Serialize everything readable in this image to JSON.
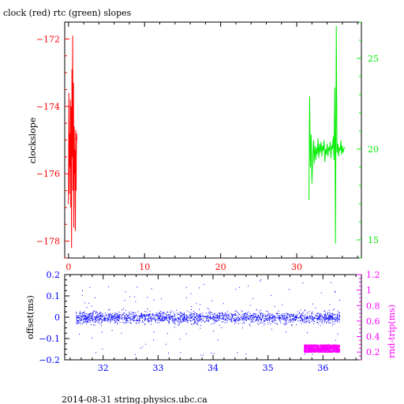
{
  "colors": {
    "red": "#ff0000",
    "green": "#00ee00",
    "blue": "#0000ff",
    "magenta": "#ff00ff",
    "black": "#000000"
  },
  "figure": {
    "title": "clock (red) rtc (green) slopes",
    "footer": "2014-08-31 string.physics.ubc.ca"
  },
  "chart_data": [
    {
      "type": "line",
      "title": "clock (red) rtc (green) slopes",
      "ylabel": "clockslope",
      "xlim": [
        -0.5,
        38.5
      ],
      "ylim": [
        -178.5,
        -171.5
      ],
      "y2lim": [
        14,
        27
      ],
      "x_ticks": [
        0,
        10,
        20,
        30
      ],
      "y_ticks": [
        -172,
        -174,
        -176,
        -178
      ],
      "y2_ticks": [
        25,
        20,
        15
      ],
      "grid": false,
      "series": [
        {
          "axis": "left",
          "color": "#ff0000",
          "x": [
            0.0,
            0.05,
            0.1,
            0.15,
            0.2,
            0.25,
            0.3,
            0.35,
            0.4,
            0.45,
            0.5,
            0.55,
            0.6,
            0.65,
            0.7,
            0.75,
            0.8,
            0.85,
            0.9,
            0.95,
            1.0,
            1.05,
            1.1
          ],
          "y": [
            -176.9,
            -173.6,
            -176.6,
            -174.8,
            -175.8,
            -173.8,
            -177.0,
            -174.0,
            -178.2,
            -172.9,
            -175.5,
            -171.9,
            -176.5,
            -173.3,
            -177.6,
            -174.6,
            -176.0,
            -175.3,
            -177.7,
            -174.7,
            -176.5,
            -174.8,
            -175.0
          ]
        },
        {
          "axis": "right",
          "color": "#00ee00",
          "x": [
            31.6,
            31.7,
            31.8,
            31.9,
            32.0,
            32.1,
            32.2,
            32.3,
            32.4,
            32.5,
            32.6,
            32.7,
            32.8,
            32.9,
            33.0,
            33.1,
            33.2,
            33.3,
            33.4,
            33.5,
            33.6,
            33.7,
            33.8,
            33.9,
            34.0,
            34.1,
            34.2,
            34.3,
            34.4,
            34.5,
            34.6,
            34.7,
            34.8,
            34.9,
            35.0,
            35.1,
            35.2,
            35.3,
            35.4,
            35.5,
            35.6,
            35.7,
            35.8,
            35.9,
            36.0,
            36.1,
            36.2,
            36.3
          ],
          "y": [
            17.2,
            22.9,
            19.0,
            20.8,
            18.1,
            19.5,
            20.5,
            19.2,
            20.2,
            19.4,
            20.1,
            19.7,
            20.6,
            19.5,
            20.3,
            19.8,
            20.4,
            19.6,
            20.2,
            19.9,
            20.5,
            19.3,
            20.0,
            19.7,
            20.3,
            19.6,
            20.1,
            19.9,
            20.4,
            19.5,
            20.2,
            20.0,
            20.7,
            19.4,
            23.4,
            14.8,
            26.8,
            19.8,
            20.3,
            19.6,
            20.1,
            19.9,
            20.5,
            19.7,
            20.2,
            19.8,
            20.0,
            20.1
          ]
        }
      ]
    },
    {
      "type": "scatter",
      "ylabel": "offset(ms)",
      "y2label": "rnd-trip(ms)",
      "xlim": [
        31.3,
        36.7
      ],
      "ylim": [
        -0.2,
        0.2
      ],
      "y2lim": [
        0.1,
        1.2
      ],
      "x_ticks": [
        32,
        33,
        34,
        35,
        36
      ],
      "y_ticks": [
        0.2,
        0.1,
        0,
        -0.1,
        -0.2
      ],
      "y_tick_labels": [
        "0.2",
        "0.1",
        "0",
        "−0.1",
        "−0.2"
      ],
      "y2_ticks": [
        1.2,
        1.0,
        0.8,
        0.6,
        0.4,
        0.2
      ],
      "y2_tick_labels": [
        "1.2",
        "1",
        "0.8",
        "0.6",
        "0.4",
        "0.2"
      ],
      "grid": false,
      "series": [
        {
          "axis": "left",
          "color": "#0000ff",
          "x_range": [
            31.5,
            36.3
          ],
          "y_center": 0.0,
          "y_spread_core": 0.035,
          "y_spread_outlier": 0.18
        },
        {
          "axis": "right",
          "color": "#ff00ff",
          "x_range": [
            35.65,
            36.3
          ],
          "y_range": [
            0.2,
            0.3
          ]
        }
      ]
    }
  ]
}
